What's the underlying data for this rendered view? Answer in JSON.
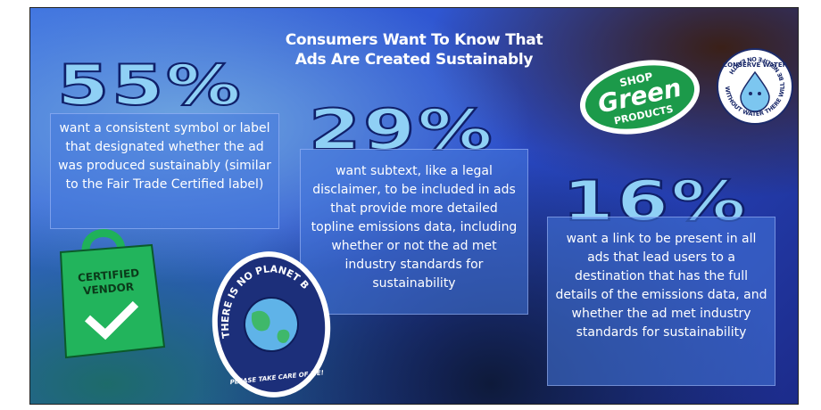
{
  "header": {
    "title_line1": "Consumers Want To Know That",
    "title_line2": "Ads Are Created Sustainably"
  },
  "stats": [
    {
      "figure": "55%",
      "text": "want a consistent symbol or label that designated whether the ad was produced sustainably (similar to the Fair Trade Certified label)"
    },
    {
      "figure": "29%",
      "text": "want subtext, like a legal disclaimer, to be included in ads that provide more detailed topline emissions data, including whether or not the ad met industry standards for sustainability"
    },
    {
      "figure": "16%",
      "text": "want a link to be present in all ads that lead users to a destination that has the full details of the emissions data, and whether the ad met industry standards for sustainability"
    }
  ],
  "stickers": {
    "shop_top": "SHOP",
    "shop_main": "Green",
    "shop_bottom": "PRODUCTS",
    "water_top": "CONSERVE WATER",
    "water_ring": "WITHOUT WATER THERE WILL BE NO LIFE ON EARTH",
    "bag_line1": "CERTIFIED",
    "bag_line2": "VENDOR",
    "globe_main": "THERE IS NO PLANET B",
    "globe_sub": "PLEASE TAKE CARE OF ME!"
  }
}
